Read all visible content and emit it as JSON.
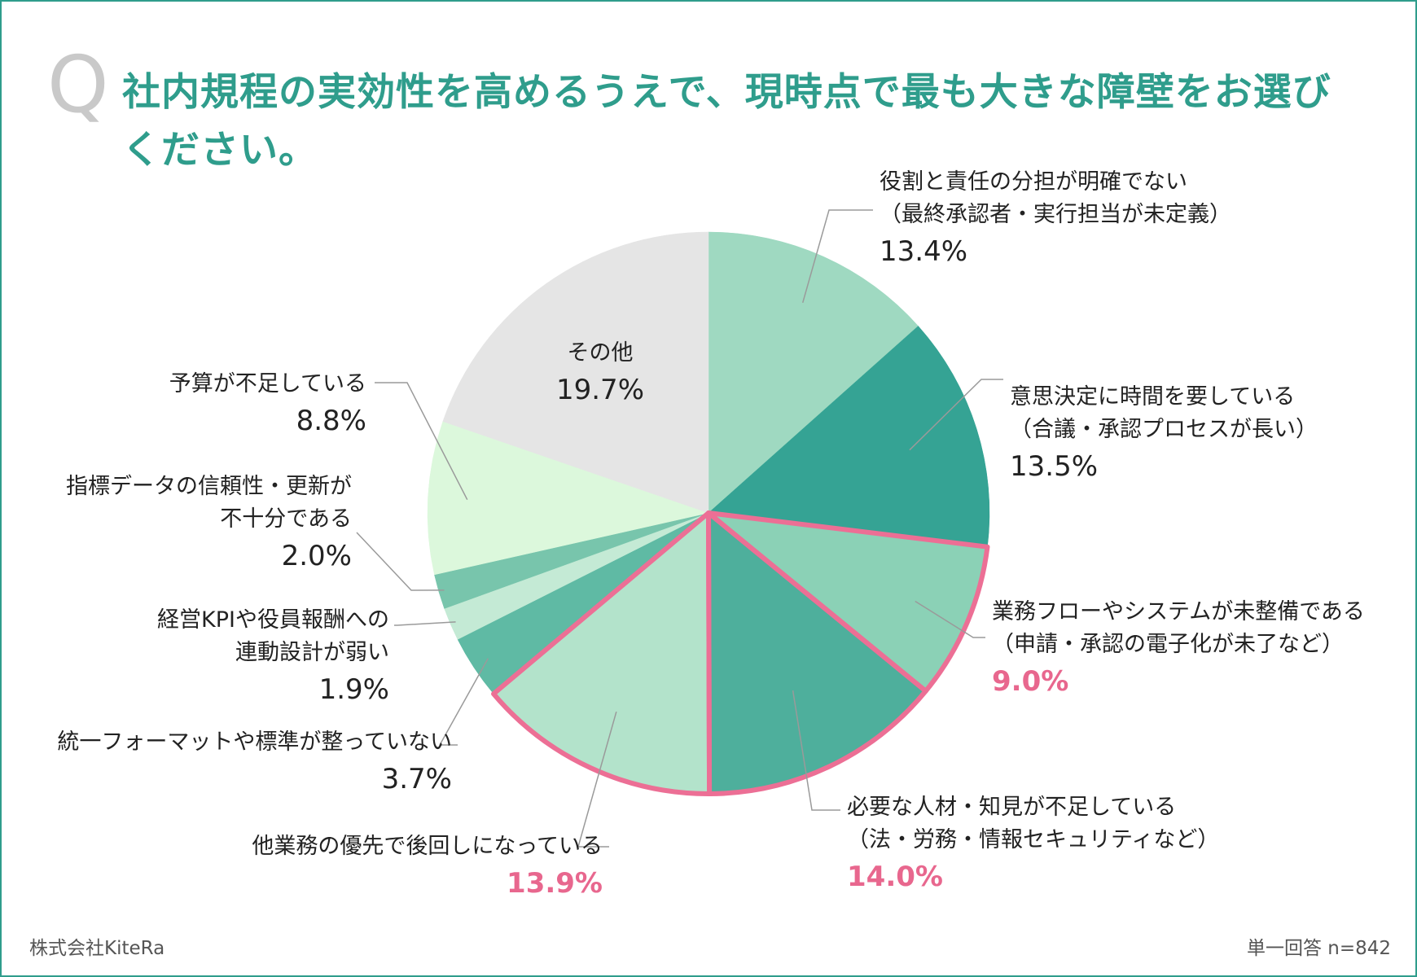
{
  "header": {
    "q_mark": "Q",
    "title": "社内規程の実効性を高めるうえで、現時点で最も大きな障壁をお選びください。"
  },
  "footer": {
    "company": "株式会社KiteRa",
    "sample": "単一回答 n=842"
  },
  "chart_data": {
    "type": "pie",
    "title": "",
    "start": "12 o'clock",
    "direction": "clockwise",
    "slices": [
      {
        "label": "役割と責任の分担が明確でない（最終承認者・実行担当が未定義）",
        "value": 13.4,
        "display": "13.4%",
        "color": "#9fd9c1",
        "highlight": false
      },
      {
        "label": "意思決定に時間を要している（合議・承認プロセスが長い）",
        "value": 13.5,
        "display": "13.5%",
        "color": "#35a394",
        "highlight": false
      },
      {
        "label": "業務フローやシステムが未整備である（申請・承認の電子化が未了など）",
        "value": 9.0,
        "display": "9.0%",
        "color": "#8bd1b6",
        "highlight": true
      },
      {
        "label": "必要な人材・知見が不足している（法・労務・情報セキュリティなど）",
        "value": 14.0,
        "display": "14.0%",
        "color": "#4eaf9c",
        "highlight": true
      },
      {
        "label": "他業務の優先で後回しになっている",
        "value": 13.9,
        "display": "13.9%",
        "color": "#b3e3cb",
        "highlight": true
      },
      {
        "label": "統一フォーマットや標準が整っていない",
        "value": 3.7,
        "display": "3.7%",
        "color": "#5fbaa4",
        "highlight": false
      },
      {
        "label": "経営KPIや役員報酬への連動設計が弱い",
        "value": 1.9,
        "display": "1.9%",
        "color": "#c4ead5",
        "highlight": false
      },
      {
        "label": "指標データの信頼性・更新が不十分である",
        "value": 2.0,
        "display": "2.0%",
        "color": "#78c5ac",
        "highlight": false
      },
      {
        "label": "予算が不足している",
        "value": 8.8,
        "display": "8.8%",
        "color": "#dcf8dc",
        "highlight": false
      },
      {
        "label": "その他",
        "value": 19.7,
        "display": "19.7%",
        "color": "#e5e5e5",
        "highlight": false
      }
    ],
    "label_lines": [
      [
        "役割と責任の分担が明確でない",
        "（最終承認者・実行担当が未定義）"
      ],
      [
        "意思決定に時間を要している",
        "（合議・承認プロセスが長い）"
      ],
      [
        "業務フローやシステムが未整備である",
        "（申請・承認の電子化が未了など）"
      ],
      [
        "必要な人材・知見が不足している",
        "（法・労務・情報セキュリティなど）"
      ],
      [
        "他業務の優先で後回しになっている"
      ],
      [
        "統一フォーマットや標準が整っていない"
      ],
      [
        "経営KPIや役員報酬への",
        "連動設計が弱い"
      ],
      [
        "指標データの信頼性・更新が",
        "不十分である"
      ],
      [
        "予算が不足している"
      ],
      [
        "その他"
      ]
    ],
    "highlight_color": "#ec6f95",
    "leader_color": "#9a9a9a"
  }
}
